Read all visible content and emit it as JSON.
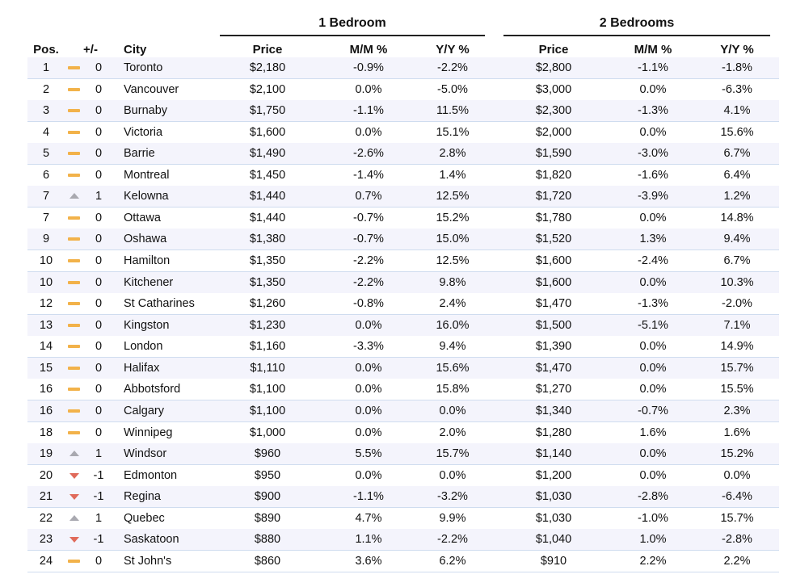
{
  "groups": [
    "1 Bedroom",
    "2 Bedrooms"
  ],
  "columns": [
    "Pos.",
    "+/-",
    "City",
    "Price",
    "M/M %",
    "Y/Y %",
    "Price",
    "M/M %",
    "Y/Y %"
  ],
  "rows": [
    [
      1,
      0,
      "Toronto",
      "$2,180",
      "-0.9%",
      "-2.2%",
      "$2,800",
      "-1.1%",
      "-1.8%"
    ],
    [
      2,
      0,
      "Vancouver",
      "$2,100",
      "0.0%",
      "-5.0%",
      "$3,000",
      "0.0%",
      "-6.3%"
    ],
    [
      3,
      0,
      "Burnaby",
      "$1,750",
      "-1.1%",
      "11.5%",
      "$2,300",
      "-1.3%",
      "4.1%"
    ],
    [
      4,
      0,
      "Victoria",
      "$1,600",
      "0.0%",
      "15.1%",
      "$2,000",
      "0.0%",
      "15.6%"
    ],
    [
      5,
      0,
      "Barrie",
      "$1,490",
      "-2.6%",
      "2.8%",
      "$1,590",
      "-3.0%",
      "6.7%"
    ],
    [
      6,
      0,
      "Montreal",
      "$1,450",
      "-1.4%",
      "1.4%",
      "$1,820",
      "-1.6%",
      "6.4%"
    ],
    [
      7,
      1,
      "Kelowna",
      "$1,440",
      "0.7%",
      "12.5%",
      "$1,720",
      "-3.9%",
      "1.2%"
    ],
    [
      7,
      0,
      "Ottawa",
      "$1,440",
      "-0.7%",
      "15.2%",
      "$1,780",
      "0.0%",
      "14.8%"
    ],
    [
      9,
      0,
      "Oshawa",
      "$1,380",
      "-0.7%",
      "15.0%",
      "$1,520",
      "1.3%",
      "9.4%"
    ],
    [
      10,
      0,
      "Hamilton",
      "$1,350",
      "-2.2%",
      "12.5%",
      "$1,600",
      "-2.4%",
      "6.7%"
    ],
    [
      10,
      0,
      "Kitchener",
      "$1,350",
      "-2.2%",
      "9.8%",
      "$1,600",
      "0.0%",
      "10.3%"
    ],
    [
      12,
      0,
      "St Catharines",
      "$1,260",
      "-0.8%",
      "2.4%",
      "$1,470",
      "-1.3%",
      "-2.0%"
    ],
    [
      13,
      0,
      "Kingston",
      "$1,230",
      "0.0%",
      "16.0%",
      "$1,500",
      "-5.1%",
      "7.1%"
    ],
    [
      14,
      0,
      "London",
      "$1,160",
      "-3.3%",
      "9.4%",
      "$1,390",
      "0.0%",
      "14.9%"
    ],
    [
      15,
      0,
      "Halifax",
      "$1,110",
      "0.0%",
      "15.6%",
      "$1,470",
      "0.0%",
      "15.7%"
    ],
    [
      16,
      0,
      "Abbotsford",
      "$1,100",
      "0.0%",
      "15.8%",
      "$1,270",
      "0.0%",
      "15.5%"
    ],
    [
      16,
      0,
      "Calgary",
      "$1,100",
      "0.0%",
      "0.0%",
      "$1,340",
      "-0.7%",
      "2.3%"
    ],
    [
      18,
      0,
      "Winnipeg",
      "$1,000",
      "0.0%",
      "2.0%",
      "$1,280",
      "1.6%",
      "1.6%"
    ],
    [
      19,
      1,
      "Windsor",
      "$960",
      "5.5%",
      "15.7%",
      "$1,140",
      "0.0%",
      "15.2%"
    ],
    [
      20,
      -1,
      "Edmonton",
      "$950",
      "0.0%",
      "0.0%",
      "$1,200",
      "0.0%",
      "0.0%"
    ],
    [
      21,
      -1,
      "Regina",
      "$900",
      "-1.1%",
      "-3.2%",
      "$1,030",
      "-2.8%",
      "-6.4%"
    ],
    [
      22,
      1,
      "Quebec",
      "$890",
      "4.7%",
      "9.9%",
      "$1,030",
      "-1.0%",
      "15.7%"
    ],
    [
      23,
      -1,
      "Saskatoon",
      "$880",
      "1.1%",
      "-2.2%",
      "$1,040",
      "1.0%",
      "-2.8%"
    ],
    [
      24,
      0,
      "St John's",
      "$860",
      "3.6%",
      "6.2%",
      "$910",
      "2.2%",
      "2.2%"
    ]
  ]
}
